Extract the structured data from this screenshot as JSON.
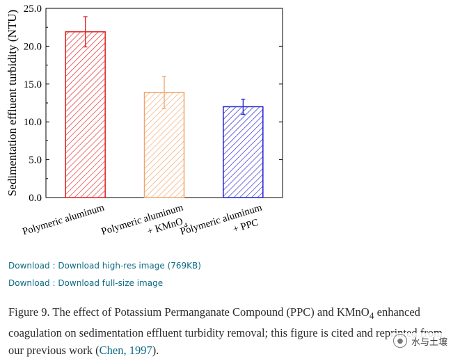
{
  "chart_data": {
    "type": "bar",
    "title": "",
    "xlabel": "",
    "ylabel": "Sedimentation effluent turbidity (NTU)",
    "ylim": [
      0,
      25
    ],
    "yticks": [
      "0.0",
      "5.0",
      "10.0",
      "15.0",
      "20.0",
      "25.0"
    ],
    "categories": [
      {
        "line1": "Polymeric aluminum",
        "line2": ""
      },
      {
        "line1": "Polymeric aluminum",
        "line2": "+ KMnO",
        "sub": "4"
      },
      {
        "line1": "Polymeric aluminum",
        "line2": "+ PPC"
      }
    ],
    "values": [
      21.9,
      13.9,
      12.0
    ],
    "errors": [
      2.0,
      2.1,
      1.0
    ],
    "colors": [
      "#e0201f",
      "#f0a56a",
      "#1f1fd6"
    ],
    "hatch": "diagonal"
  },
  "links": {
    "download_highres": "Download : Download high-res image (769KB)",
    "download_fullsize": "Download : Download full-size image"
  },
  "caption": {
    "part1": "Figure 9. The effect of Potassium Permanganate Compound (PPC) and KMnO",
    "sub": "4",
    "part2": " enhanced coagulation on sedimentation effluent turbidity removal; this figure is cited and reprinted from our previous work (",
    "cite": "Chen, 1997",
    "part3": ")."
  },
  "watermark": {
    "icon": "wechat-icon",
    "text": "水与土壤"
  }
}
